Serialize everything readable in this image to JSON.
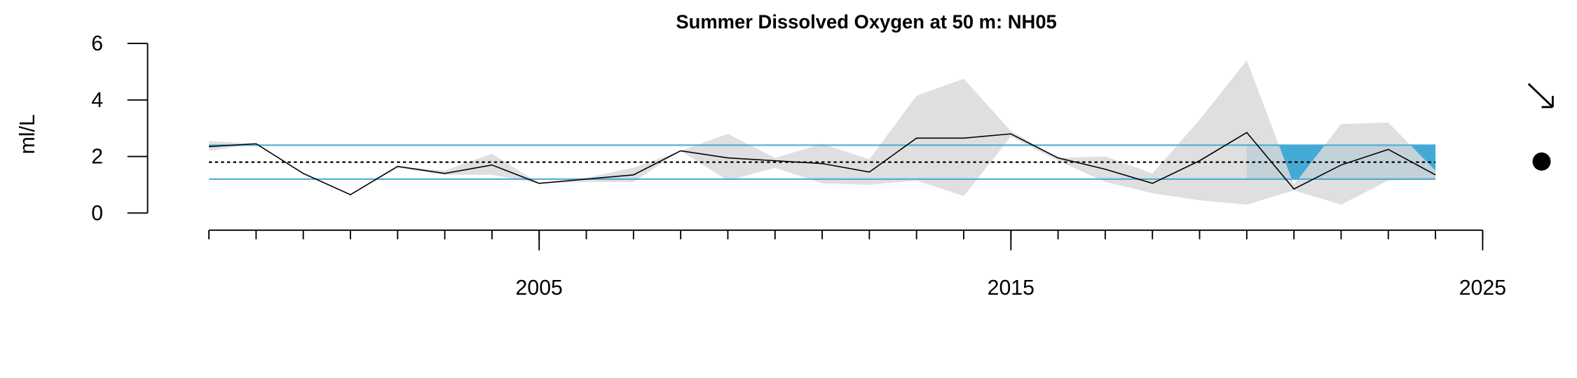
{
  "chart_data": {
    "type": "line",
    "title": "Summer Dissolved Oxygen at 50 m: NH05",
    "y_label": "ml/L",
    "x": [
      1998,
      1999,
      2000,
      2001,
      2002,
      2003,
      2004,
      2005,
      2006,
      2007,
      2008,
      2009,
      2010,
      2011,
      2012,
      2013,
      2014,
      2015,
      2016,
      2017,
      2018,
      2019,
      2020,
      2021,
      2022,
      2023,
      2024
    ],
    "values": [
      2.35,
      2.45,
      1.4,
      0.65,
      1.65,
      1.4,
      1.7,
      1.05,
      1.2,
      1.35,
      2.2,
      1.95,
      1.85,
      1.75,
      1.45,
      2.65,
      2.65,
      2.8,
      1.95,
      1.55,
      1.05,
      1.85,
      2.85,
      0.85,
      1.7,
      2.25,
      1.35
    ],
    "band_upper": [
      2.55,
      2.45,
      1.4,
      0.65,
      1.65,
      1.5,
      2.1,
      1.05,
      1.25,
      1.6,
      2.2,
      2.8,
      1.95,
      2.45,
      1.9,
      4.15,
      4.75,
      2.9,
      1.95,
      2.0,
      1.4,
      3.3,
      5.4,
      1.0,
      3.15,
      3.2,
      1.5
    ],
    "band_lower": [
      2.2,
      2.45,
      1.4,
      0.65,
      1.6,
      1.35,
      1.35,
      1.05,
      1.1,
      1.1,
      2.2,
      1.15,
      1.6,
      1.05,
      1.0,
      1.15,
      0.6,
      2.7,
      1.85,
      1.1,
      0.7,
      0.45,
      0.3,
      0.8,
      0.3,
      1.15,
      1.2
    ],
    "mean": 1.8,
    "upper_sd": 2.4,
    "lower_sd": 1.2,
    "highlight_x": [
      2020,
      2024
    ],
    "line_color": "#000000",
    "band_color": "#d9d9d9",
    "sd_color": "#44aad5",
    "highlight_color": "#44aad5",
    "xlim": [
      1996.7,
      2025.5
    ],
    "ylim": [
      0,
      6
    ],
    "xticks": [
      2005,
      2015,
      2025
    ],
    "xminor_ticks": [
      1998,
      1999,
      2000,
      2001,
      2002,
      2003,
      2004,
      2005,
      2006,
      2007,
      2008,
      2009,
      2010,
      2011,
      2012,
      2013,
      2014,
      2015,
      2016,
      2017,
      2018,
      2019,
      2020,
      2021,
      2022,
      2023,
      2024,
      2025
    ],
    "yticks": [
      0,
      2,
      4,
      6
    ]
  }
}
